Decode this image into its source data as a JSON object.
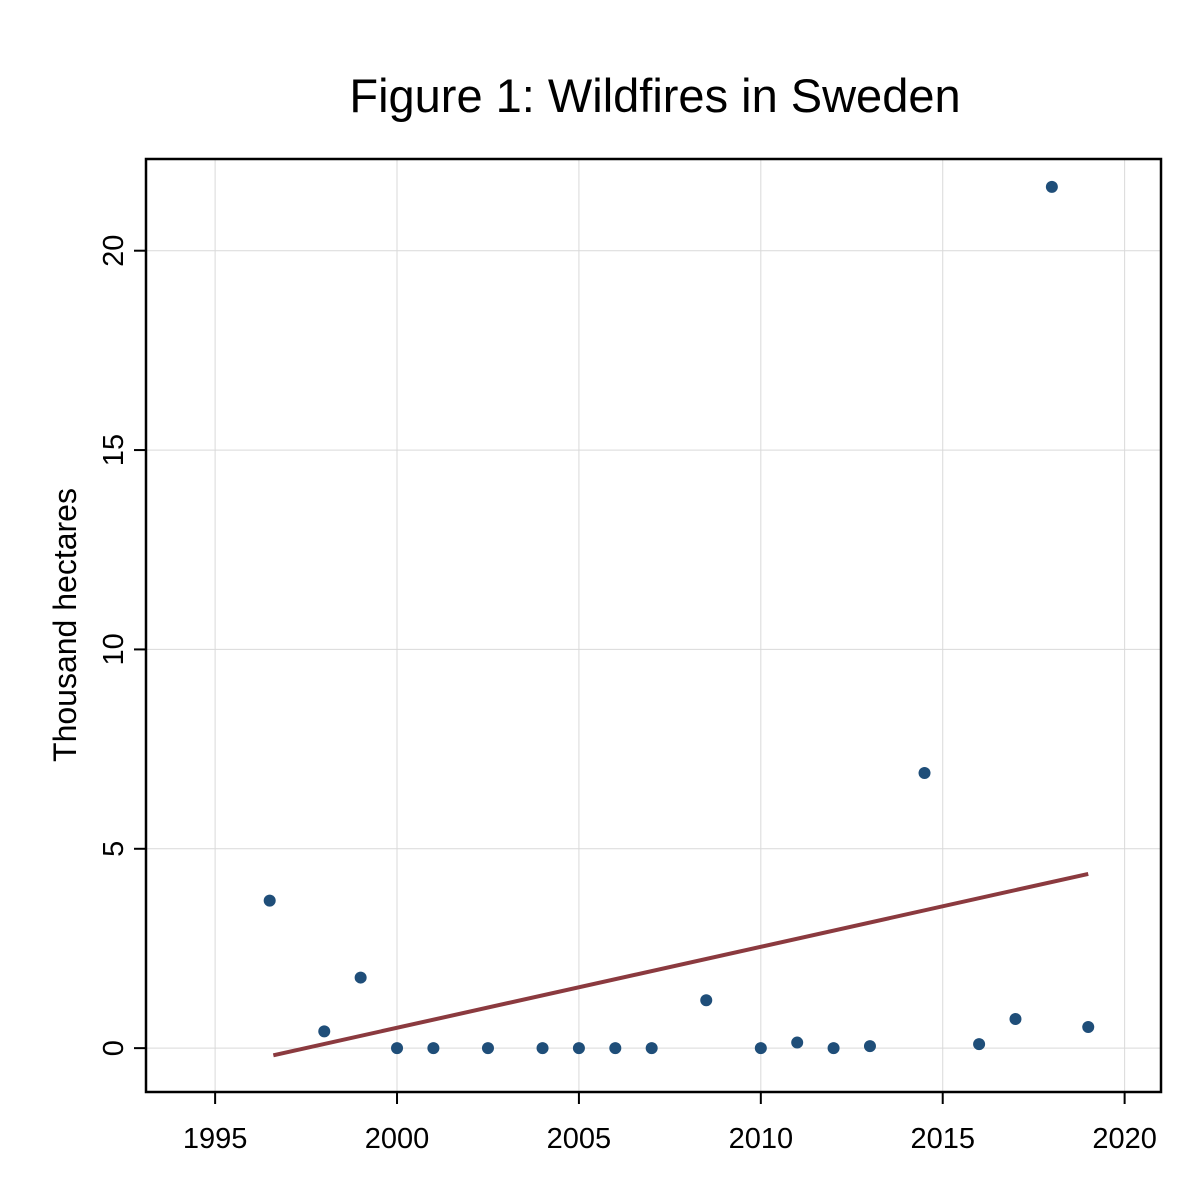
{
  "chart_data": {
    "type": "scatter",
    "title": "Figure 1: Wildfires in Sweden",
    "xlabel": "",
    "ylabel": "Thousand hectares",
    "xlim": [
      1993.1,
      2021.0
    ],
    "ylim": [
      -1.1,
      22.3
    ],
    "xticks": [
      1995,
      2000,
      2005,
      2010,
      2015,
      2020
    ],
    "yticks": [
      0,
      5,
      10,
      15,
      20
    ],
    "grid": true,
    "legend": "none",
    "colors": {
      "points": "#1f4e79",
      "fit_line": "#8b3a3f"
    },
    "series": [
      {
        "type": "scatter",
        "points": [
          {
            "x": 1996.5,
            "y": 3.7
          },
          {
            "x": 1998.0,
            "y": 0.42
          },
          {
            "x": 1999.0,
            "y": 1.77
          },
          {
            "x": 2000.0,
            "y": 0.0
          },
          {
            "x": 2001.0,
            "y": 0.0
          },
          {
            "x": 2002.5,
            "y": 0.0
          },
          {
            "x": 2004.0,
            "y": 0.0
          },
          {
            "x": 2005.0,
            "y": 0.0
          },
          {
            "x": 2006.0,
            "y": 0.0
          },
          {
            "x": 2007.0,
            "y": 0.0
          },
          {
            "x": 2008.5,
            "y": 1.2
          },
          {
            "x": 2010.0,
            "y": 0.0
          },
          {
            "x": 2011.0,
            "y": 0.14
          },
          {
            "x": 2012.0,
            "y": 0.0
          },
          {
            "x": 2013.0,
            "y": 0.05
          },
          {
            "x": 2014.5,
            "y": 6.9
          },
          {
            "x": 2016.0,
            "y": 0.1
          },
          {
            "x": 2017.0,
            "y": 0.73
          },
          {
            "x": 2018.0,
            "y": 21.6
          },
          {
            "x": 2019.0,
            "y": 0.53
          }
        ]
      },
      {
        "type": "line",
        "points": [
          {
            "x": 1996.6,
            "y": -0.18
          },
          {
            "x": 2019.0,
            "y": 4.37
          }
        ]
      }
    ]
  }
}
